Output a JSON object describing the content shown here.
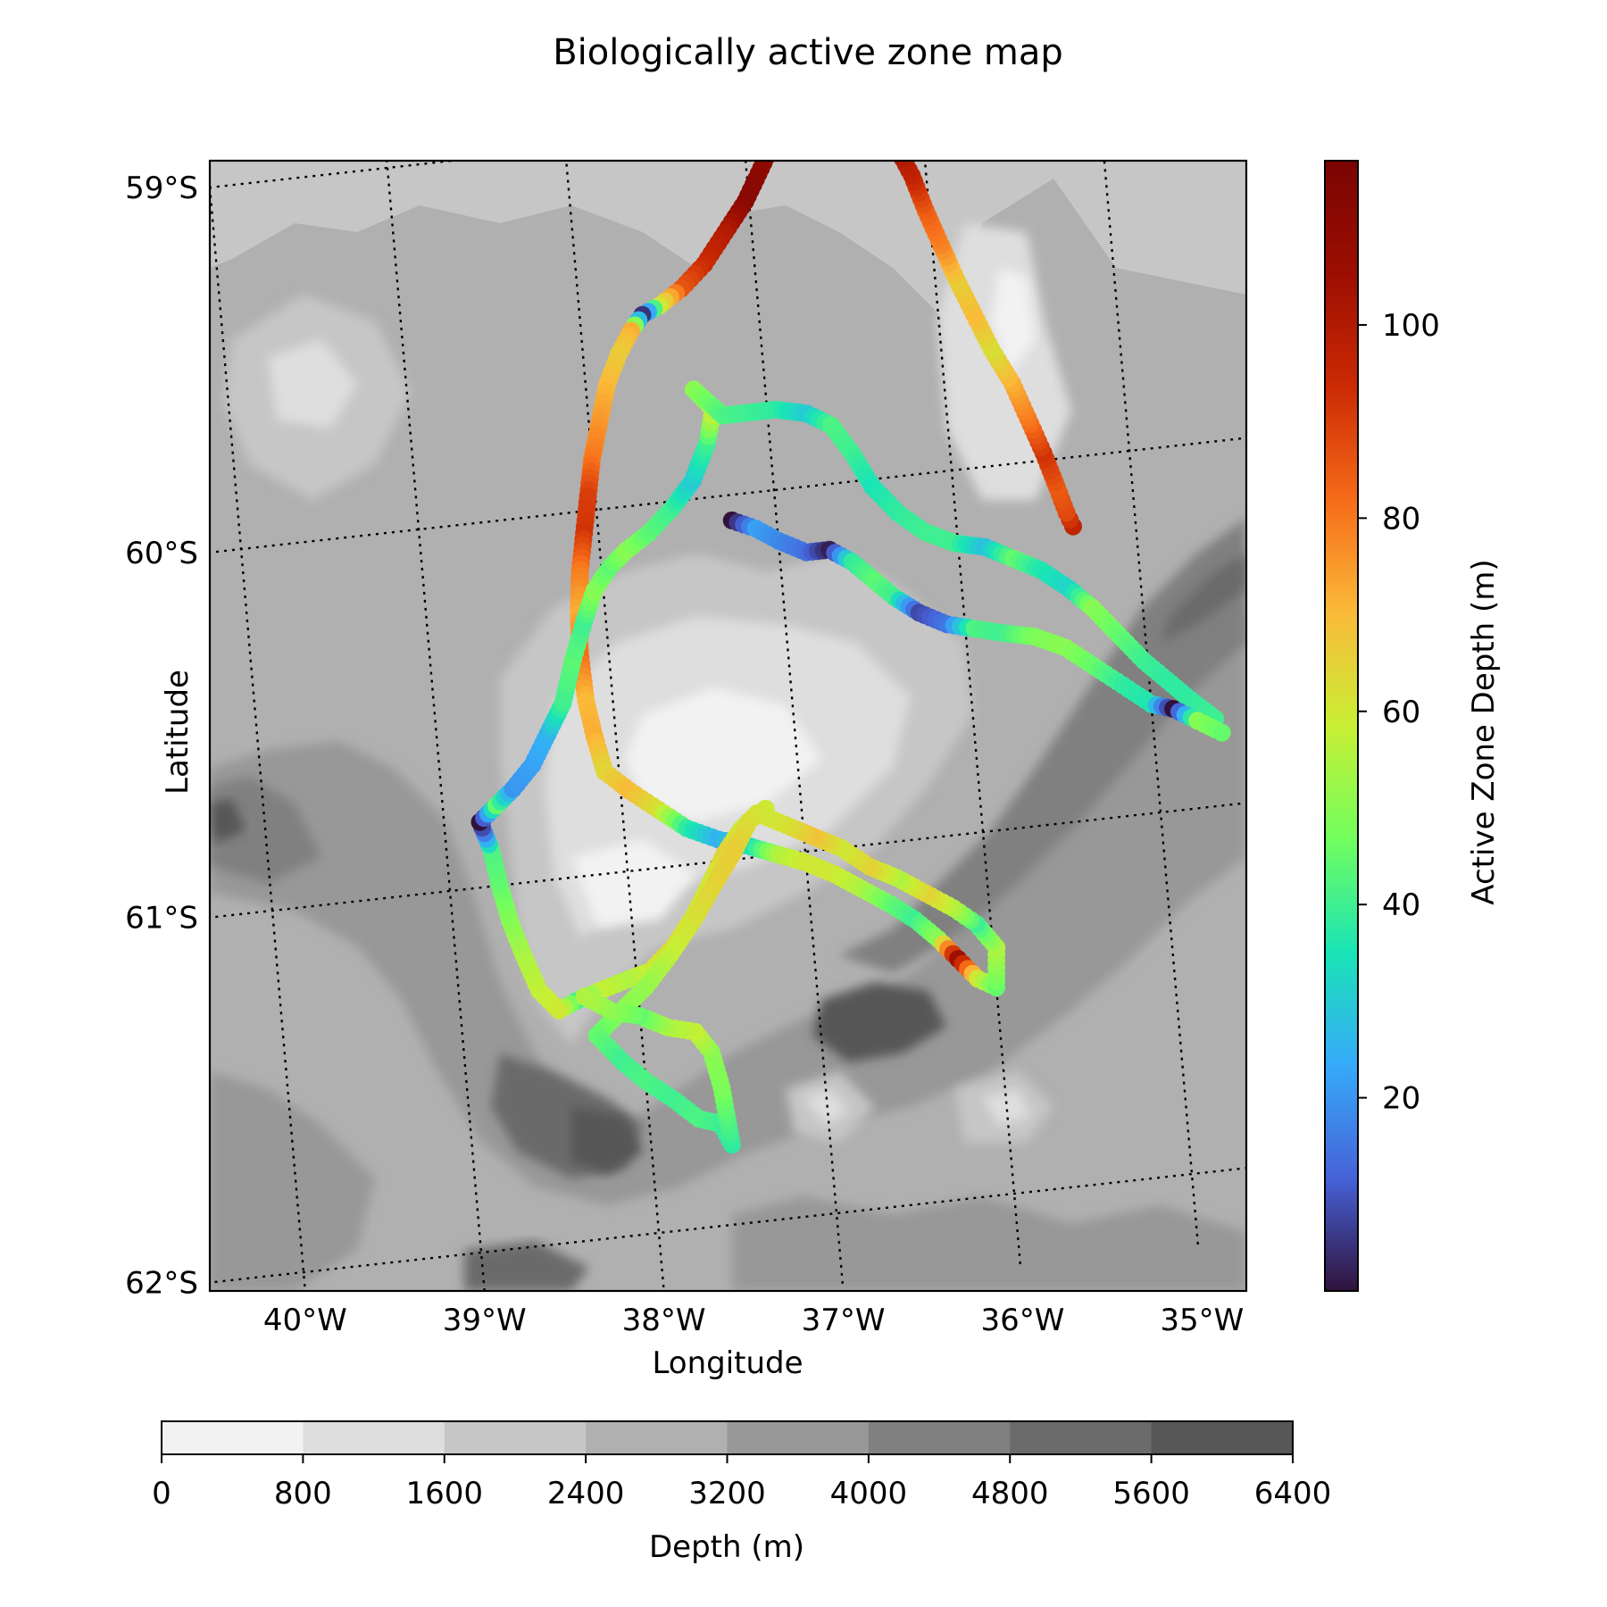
{
  "title": "Biologically active zone map",
  "map": {
    "xlabel": "Longitude",
    "ylabel": "Latitude",
    "lon_range": [
      -40.0,
      -34.3
    ],
    "lat_range": [
      -62.0,
      -59.0
    ],
    "lon_gridlines": [
      -40,
      -39,
      -38,
      -37,
      -36,
      -35
    ],
    "lat_gridlines": [
      -59,
      -60,
      -61,
      -62
    ],
    "lon_tick_labels": [
      "40°W",
      "39°W",
      "38°W",
      "37°W",
      "36°W",
      "35°W"
    ],
    "lat_tick_labels": [
      "59°S",
      "60°S",
      "61°S",
      "62°S"
    ],
    "background": "bathymetry-gray-contours"
  },
  "depth_colorbar": {
    "label": "Depth (m)",
    "orientation": "horizontal",
    "ticks": [
      "0",
      "800",
      "1600",
      "2400",
      "3200",
      "4000",
      "4800",
      "5600",
      "6400"
    ],
    "colors": [
      "#f2f2f2",
      "#dedede",
      "#c6c6c6",
      "#b0b0b0",
      "#989898",
      "#808080",
      "#6b6b6b",
      "#575757"
    ]
  },
  "active_colorbar": {
    "label": "Active Zone Depth (m)",
    "orientation": "vertical",
    "range": [
      0,
      117
    ],
    "ticks": [
      20,
      40,
      60,
      80,
      100
    ],
    "tick_labels": [
      "20",
      "40",
      "60",
      "80",
      "100"
    ],
    "colormap": "turbo"
  },
  "chart_data": {
    "type": "scatter",
    "x_label": "Longitude",
    "y_label": "Latitude",
    "color_label": "Active Zone Depth (m)",
    "tracks": [
      {
        "points": [
          [
            -35.35,
            -60.19,
            96
          ],
          [
            -35.38,
            -60.15,
            88
          ],
          [
            -35.42,
            -60.08,
            85
          ],
          [
            -35.48,
            -59.98,
            92
          ],
          [
            -35.55,
            -59.88,
            80
          ],
          [
            -35.62,
            -59.78,
            72
          ],
          [
            -35.72,
            -59.68,
            62
          ],
          [
            -35.8,
            -59.58,
            70
          ],
          [
            -35.88,
            -59.48,
            66
          ],
          [
            -35.95,
            -59.38,
            78
          ],
          [
            -36.02,
            -59.28,
            84
          ],
          [
            -36.08,
            -59.18,
            96
          ],
          [
            -36.15,
            -59.1,
            102
          ],
          [
            -36.22,
            -59.0,
            98
          ],
          [
            -36.28,
            -58.93,
            92
          ],
          [
            -36.36,
            -58.87,
            100
          ],
          [
            -36.48,
            -58.88,
            102
          ],
          [
            -36.62,
            -58.92,
            104
          ],
          [
            -36.78,
            -59.0,
            116
          ],
          [
            -36.9,
            -59.1,
            110
          ],
          [
            -37.02,
            -59.2,
            112
          ],
          [
            -37.15,
            -59.28,
            100
          ],
          [
            -37.28,
            -59.36,
            94
          ],
          [
            -37.42,
            -59.42,
            86
          ],
          [
            -37.55,
            -59.46,
            60
          ],
          [
            -37.65,
            -59.48,
            5
          ],
          [
            -37.72,
            -59.52,
            72
          ],
          [
            -37.8,
            -59.58,
            66
          ],
          [
            -37.88,
            -59.66,
            70
          ],
          [
            -37.94,
            -59.76,
            75
          ],
          [
            -38.0,
            -59.86,
            80
          ],
          [
            -38.04,
            -59.96,
            90
          ],
          [
            -38.08,
            -60.06,
            92
          ],
          [
            -38.12,
            -60.16,
            80
          ],
          [
            -38.15,
            -60.28,
            72
          ],
          [
            -38.16,
            -60.4,
            82
          ],
          [
            -38.15,
            -60.52,
            70
          ],
          [
            -38.12,
            -60.62,
            72
          ],
          [
            -38.08,
            -60.72,
            64
          ],
          [
            -37.95,
            -60.78,
            70
          ],
          [
            -37.8,
            -60.84,
            62
          ],
          [
            -37.65,
            -60.9,
            38
          ],
          [
            -37.48,
            -60.94,
            25
          ],
          [
            -37.3,
            -60.97,
            35
          ],
          [
            -37.15,
            -61.0,
            55
          ],
          [
            -37.0,
            -61.03,
            60
          ],
          [
            -36.85,
            -61.07,
            60
          ],
          [
            -36.7,
            -61.12,
            55
          ],
          [
            -36.55,
            -61.17,
            45
          ],
          [
            -36.42,
            -61.22,
            40
          ],
          [
            -36.3,
            -61.28,
            50
          ],
          [
            -36.2,
            -61.34,
            105
          ],
          [
            -36.1,
            -61.4,
            60
          ],
          [
            -36.0,
            -61.43,
            45
          ],
          [
            -35.98,
            -61.32,
            55
          ],
          [
            -36.08,
            -61.25,
            40
          ],
          [
            -36.2,
            -61.2,
            55
          ],
          [
            -36.35,
            -61.15,
            65
          ],
          [
            -36.5,
            -61.1,
            55
          ],
          [
            -36.65,
            -61.06,
            65
          ],
          [
            -36.8,
            -61.0,
            60
          ],
          [
            -36.95,
            -60.96,
            68
          ],
          [
            -37.1,
            -60.92,
            62
          ],
          [
            -37.25,
            -60.88,
            60
          ],
          [
            -37.35,
            -60.92,
            60
          ],
          [
            -37.45,
            -60.98,
            65
          ],
          [
            -37.55,
            -61.06,
            60
          ],
          [
            -37.65,
            -61.14,
            60
          ],
          [
            -37.78,
            -61.22,
            64
          ],
          [
            -37.92,
            -61.28,
            60
          ],
          [
            -38.08,
            -61.3,
            55
          ],
          [
            -38.22,
            -61.32,
            58
          ],
          [
            -38.35,
            -61.34,
            42
          ],
          [
            -38.45,
            -61.36,
            60
          ],
          [
            -38.55,
            -61.3,
            58
          ],
          [
            -38.62,
            -61.2,
            55
          ],
          [
            -38.68,
            -61.1,
            50
          ],
          [
            -38.72,
            -61.0,
            45
          ],
          [
            -38.75,
            -60.9,
            42
          ],
          [
            -38.8,
            -60.82,
            0
          ],
          [
            -38.7,
            -60.78,
            45
          ],
          [
            -38.6,
            -60.74,
            20
          ],
          [
            -38.48,
            -60.68,
            22
          ],
          [
            -38.38,
            -60.6,
            25
          ],
          [
            -38.28,
            -60.52,
            40
          ],
          [
            -38.2,
            -60.4,
            44
          ],
          [
            -38.12,
            -60.3,
            40
          ],
          [
            -38.05,
            -60.22,
            50
          ],
          [
            -37.95,
            -60.16,
            44
          ],
          [
            -37.85,
            -60.12,
            50
          ],
          [
            -37.72,
            -60.08,
            44
          ],
          [
            -37.58,
            -60.02,
            40
          ],
          [
            -37.45,
            -59.95,
            30
          ],
          [
            -37.35,
            -59.85,
            40
          ],
          [
            -37.3,
            -59.76,
            60
          ],
          [
            -37.4,
            -59.7,
            50
          ],
          [
            -37.25,
            -59.78,
            42
          ],
          [
            -37.12,
            -59.78,
            40
          ],
          [
            -36.95,
            -59.78,
            38
          ],
          [
            -36.78,
            -59.8,
            30
          ],
          [
            -36.65,
            -59.84,
            42
          ],
          [
            -36.55,
            -59.92,
            40
          ],
          [
            -36.45,
            -60.02,
            35
          ],
          [
            -36.32,
            -60.1,
            38
          ],
          [
            -36.18,
            -60.16,
            40
          ],
          [
            -36.02,
            -60.2,
            40
          ],
          [
            -35.85,
            -60.22,
            28
          ],
          [
            -35.7,
            -60.26,
            45
          ],
          [
            -35.55,
            -60.3,
            36
          ],
          [
            -35.4,
            -60.36,
            32
          ],
          [
            -35.28,
            -60.42,
            50
          ],
          [
            -35.15,
            -60.5,
            45
          ],
          [
            -35.02,
            -60.58,
            40
          ],
          [
            -34.9,
            -60.64,
            38
          ],
          [
            -34.78,
            -60.7,
            38
          ],
          [
            -34.65,
            -60.76,
            40
          ]
        ]
      },
      {
        "points": [
          [
            -37.25,
            -60.07,
            0
          ],
          [
            -37.12,
            -60.1,
            22
          ],
          [
            -37.0,
            -60.14,
            18
          ],
          [
            -36.85,
            -60.18,
            14
          ],
          [
            -36.72,
            -60.18,
            2
          ],
          [
            -36.6,
            -60.22,
            38
          ],
          [
            -36.48,
            -60.28,
            44
          ],
          [
            -36.38,
            -60.33,
            40
          ],
          [
            -36.25,
            -60.38,
            8
          ],
          [
            -36.1,
            -60.42,
            15
          ],
          [
            -35.95,
            -60.44,
            42
          ],
          [
            -35.8,
            -60.46,
            40
          ],
          [
            -35.62,
            -60.48,
            48
          ],
          [
            -35.45,
            -60.52,
            50
          ],
          [
            -35.3,
            -60.58,
            45
          ],
          [
            -35.15,
            -60.64,
            38
          ],
          [
            -35.0,
            -60.7,
            36
          ],
          [
            -34.88,
            -60.72,
            0
          ],
          [
            -34.75,
            -60.76,
            50
          ],
          [
            -34.62,
            -60.8,
            45
          ]
        ]
      },
      {
        "points": [
          [
            -37.2,
            -60.87,
            60
          ],
          [
            -37.3,
            -60.9,
            62
          ],
          [
            -37.4,
            -60.98,
            66
          ],
          [
            -37.52,
            -61.06,
            65
          ],
          [
            -37.65,
            -61.15,
            62
          ],
          [
            -37.8,
            -61.24,
            58
          ],
          [
            -37.95,
            -61.32,
            52
          ],
          [
            -38.1,
            -61.38,
            50
          ],
          [
            -38.25,
            -61.44,
            45
          ],
          [
            -38.12,
            -61.52,
            40
          ],
          [
            -38.0,
            -61.58,
            42
          ],
          [
            -37.85,
            -61.64,
            40
          ],
          [
            -37.72,
            -61.7,
            42
          ],
          [
            -37.6,
            -61.72,
            40
          ],
          [
            -37.55,
            -61.78,
            38
          ],
          [
            -37.58,
            -61.62,
            48
          ],
          [
            -37.62,
            -61.52,
            50
          ],
          [
            -37.7,
            -61.46,
            58
          ],
          [
            -37.85,
            -61.44,
            55
          ],
          [
            -38.0,
            -61.4,
            45
          ],
          [
            -38.15,
            -61.38,
            50
          ],
          [
            -38.3,
            -61.33,
            55
          ]
        ]
      }
    ]
  }
}
